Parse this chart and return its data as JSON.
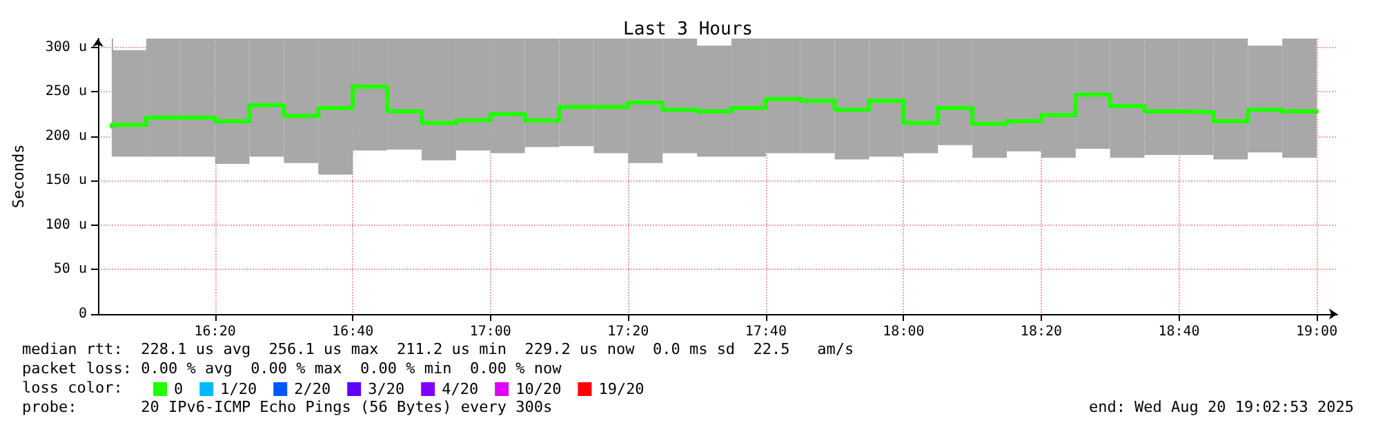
{
  "chart_data": {
    "type": "step",
    "title": "Last 3 Hours",
    "ylabel": "Seconds",
    "legend_title": "loss color:",
    "x": [
      "2025-08-20T16:05",
      "2025-08-20T16:10",
      "2025-08-20T16:15",
      "2025-08-20T16:20",
      "2025-08-20T16:25",
      "2025-08-20T16:30",
      "2025-08-20T16:35",
      "2025-08-20T16:40",
      "2025-08-20T16:45",
      "2025-08-20T16:50",
      "2025-08-20T16:55",
      "2025-08-20T17:00",
      "2025-08-20T17:05",
      "2025-08-20T17:10",
      "2025-08-20T17:15",
      "2025-08-20T17:20",
      "2025-08-20T17:25",
      "2025-08-20T17:30",
      "2025-08-20T17:35",
      "2025-08-20T17:40",
      "2025-08-20T17:45",
      "2025-08-20T17:50",
      "2025-08-20T17:55",
      "2025-08-20T18:00",
      "2025-08-20T18:05",
      "2025-08-20T18:10",
      "2025-08-20T18:15",
      "2025-08-20T18:20",
      "2025-08-20T18:25",
      "2025-08-20T18:30",
      "2025-08-20T18:35",
      "2025-08-20T18:40",
      "2025-08-20T18:45",
      "2025-08-20T18:50",
      "2025-08-20T18:55",
      "2025-08-20T19:00"
    ],
    "series": [
      {
        "name": "0",
        "color": "#20ff00",
        "values": [
          211,
          213,
          221,
          221,
          217,
          235,
          223,
          232,
          256,
          228,
          215,
          218,
          225,
          218,
          233,
          233,
          238,
          230,
          228,
          232,
          242,
          240,
          230,
          240,
          215,
          232,
          214,
          217,
          224,
          247,
          234,
          228,
          227,
          217,
          230,
          228
        ],
        "lower": [
          181,
          177,
          177,
          177,
          169,
          177,
          170,
          157,
          184,
          185,
          173,
          184,
          181,
          188,
          189,
          181,
          170,
          181,
          177,
          177,
          181,
          181,
          174,
          177,
          181,
          190,
          176,
          183,
          176,
          186,
          176,
          179,
          179,
          174,
          182,
          176
        ],
        "upper": [
          310,
          297,
          310,
          310,
          310,
          310,
          310,
          310,
          310,
          310,
          310,
          310,
          310,
          310,
          310,
          310,
          310,
          310,
          302,
          310,
          310,
          310,
          310,
          310,
          310,
          310,
          310,
          310,
          310,
          310,
          310,
          310,
          310,
          310,
          302,
          310
        ]
      },
      {
        "name": "1/20",
        "color": "#00b8ff",
        "values": [
          null,
          null,
          null,
          null,
          null,
          null,
          null,
          null,
          null,
          null,
          null,
          null,
          null,
          null,
          null,
          null,
          null,
          null,
          null,
          null,
          null,
          null,
          null,
          null,
          null,
          null,
          null,
          null,
          null,
          null,
          null,
          null,
          null,
          null,
          null,
          null
        ]
      },
      {
        "name": "2/20",
        "color": "#0059ff",
        "values": [
          null,
          null,
          null,
          null,
          null,
          null,
          null,
          null,
          null,
          null,
          null,
          null,
          null,
          null,
          null,
          null,
          null,
          null,
          null,
          null,
          null,
          null,
          null,
          null,
          null,
          null,
          null,
          null,
          null,
          null,
          null,
          null,
          null,
          null,
          null,
          null
        ]
      },
      {
        "name": "3/20",
        "color": "#5e00ff",
        "values": [
          null,
          null,
          null,
          null,
          null,
          null,
          null,
          null,
          null,
          null,
          null,
          null,
          null,
          null,
          null,
          null,
          null,
          null,
          null,
          null,
          null,
          null,
          null,
          null,
          null,
          null,
          null,
          null,
          null,
          null,
          null,
          null,
          null,
          null,
          null,
          null
        ]
      },
      {
        "name": "4/20",
        "color": "#7e00ff",
        "values": [
          null,
          null,
          null,
          null,
          null,
          null,
          null,
          null,
          null,
          null,
          null,
          null,
          null,
          null,
          null,
          null,
          null,
          null,
          null,
          null,
          null,
          null,
          null,
          null,
          null,
          null,
          null,
          null,
          null,
          null,
          null,
          null,
          null,
          null,
          null,
          null
        ]
      },
      {
        "name": "10/20",
        "color": "#dd00ff",
        "values": [
          null,
          null,
          null,
          null,
          null,
          null,
          null,
          null,
          null,
          null,
          null,
          null,
          null,
          null,
          null,
          null,
          null,
          null,
          null,
          null,
          null,
          null,
          null,
          null,
          null,
          null,
          null,
          null,
          null,
          null,
          null,
          null,
          null,
          null,
          null,
          null
        ]
      },
      {
        "name": "19/20",
        "color": "#ff0000",
        "values": [
          null,
          null,
          null,
          null,
          null,
          null,
          null,
          null,
          null,
          null,
          null,
          null,
          null,
          null,
          null,
          null,
          null,
          null,
          null,
          null,
          null,
          null,
          null,
          null,
          null,
          null,
          null,
          null,
          null,
          null,
          null,
          null,
          null,
          null,
          null,
          null
        ]
      }
    ],
    "xlim": [
      "2025-08-20T16:03",
      "2025-08-20T19:03"
    ],
    "xticks": [
      {
        "value": "2025-08-20T16:20",
        "label": "16:20"
      },
      {
        "value": "2025-08-20T16:40",
        "label": "16:40"
      },
      {
        "value": "2025-08-20T17:00",
        "label": "17:00"
      },
      {
        "value": "2025-08-20T17:20",
        "label": "17:20"
      },
      {
        "value": "2025-08-20T17:40",
        "label": "17:40"
      },
      {
        "value": "2025-08-20T18:00",
        "label": "18:00"
      },
      {
        "value": "2025-08-20T18:20",
        "label": "18:20"
      },
      {
        "value": "2025-08-20T18:40",
        "label": "18:40"
      },
      {
        "value": "2025-08-20T19:00",
        "label": "19:00"
      }
    ],
    "ylim": [
      0,
      310
    ],
    "yticks": [
      0,
      {
        "value": 50,
        "label": "50 u"
      },
      {
        "value": 100,
        "label": "100 u"
      },
      {
        "value": 150,
        "label": "150 u"
      },
      {
        "value": 200,
        "label": "200 u"
      },
      {
        "value": 250,
        "label": "250 u"
      },
      {
        "value": 300,
        "label": "300 u"
      }
    ],
    "grid": true,
    "legend": "bottom left",
    "marker": "none",
    "line_style": "solid",
    "annotations": [
      "median rtt:  228.1 us avg  256.1 us max  211.2 us min  229.2 us now  0.0 ms sd  22.5   am/s",
      "packet loss: 0.00 % avg  0.00 % max  0.00 % min  0.00 % now",
      "probe:       20 IPv6-ICMP Echo Pings (56 Bytes) every 300s",
      "end: Wed Aug 20 19:02:53 2025"
    ]
  }
}
